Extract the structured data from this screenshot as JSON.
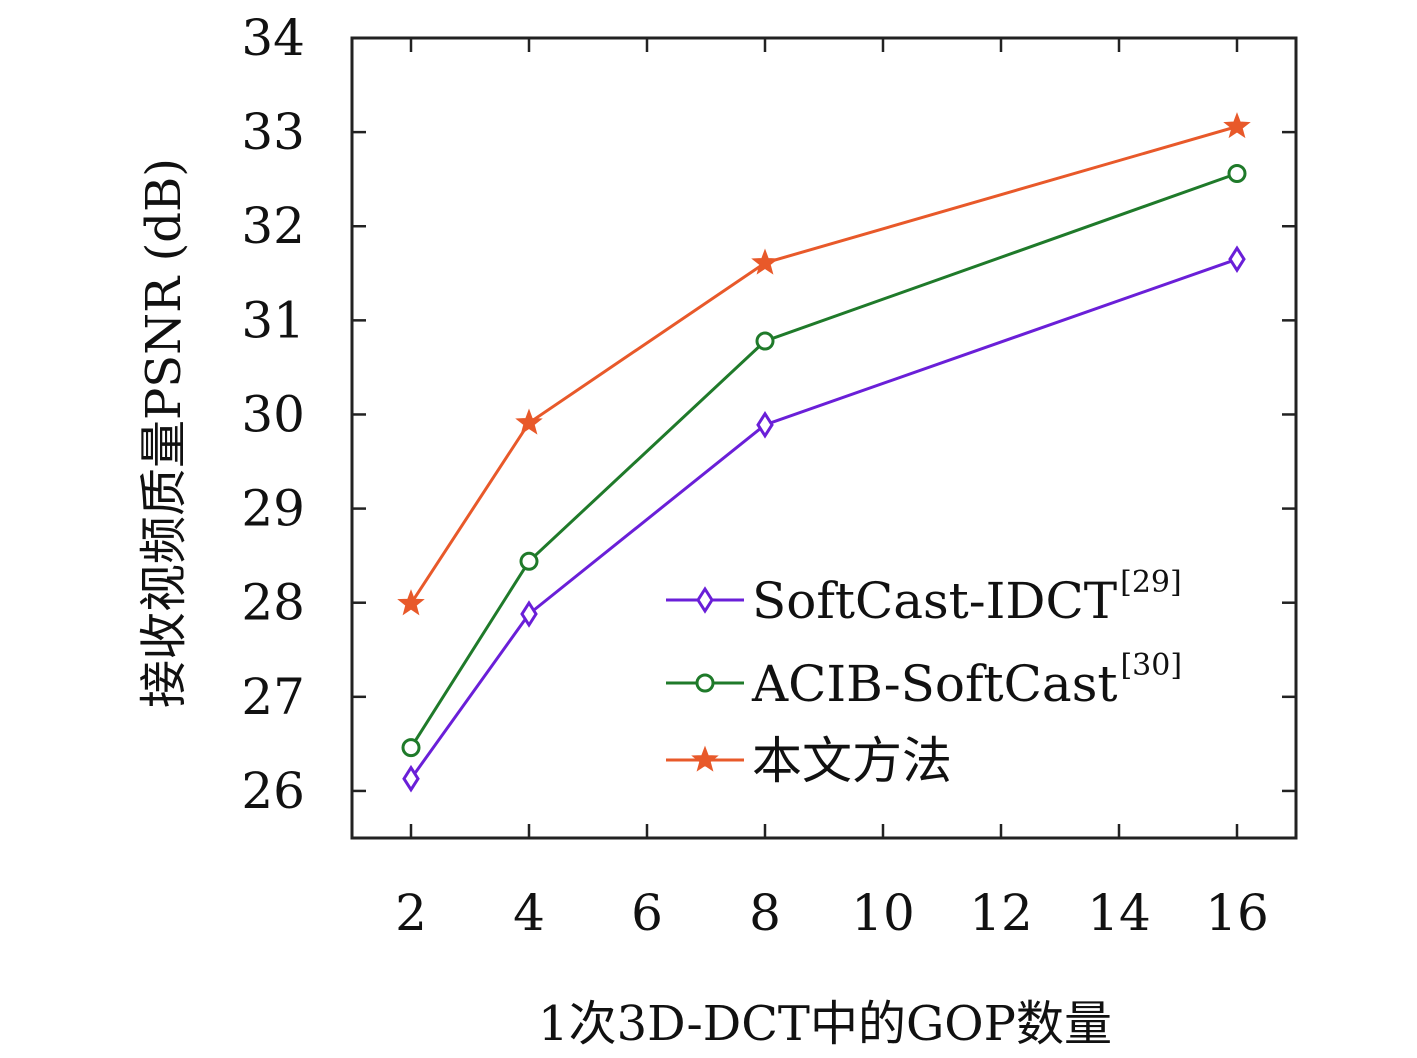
{
  "chart_data": {
    "type": "line",
    "title": "",
    "xlabel": "1次3D-DCT中的GOP数量",
    "ylabel": "接收视频质量PSNR (dB)",
    "xlim": [
      1,
      17
    ],
    "ylim": [
      25.5,
      34
    ],
    "x_ticks": [
      "2",
      "4",
      "6",
      "8",
      "10",
      "12",
      "14",
      "16"
    ],
    "y_ticks": [
      "26",
      "27",
      "28",
      "29",
      "30",
      "31",
      "32",
      "33",
      "34"
    ],
    "grid": false,
    "legend_position": "lower-right",
    "x": [
      2,
      4,
      8,
      16
    ],
    "series": [
      {
        "name": "SoftCast-IDCT",
        "ref": "[29]",
        "color": "#6a1fd8",
        "marker": "diamond",
        "values": [
          26.13,
          27.88,
          29.89,
          31.65
        ]
      },
      {
        "name": "ACIB-SoftCast",
        "ref": "[30]",
        "color": "#1f7a2a",
        "marker": "circle",
        "values": [
          26.46,
          28.44,
          30.78,
          32.56
        ]
      },
      {
        "name": "本文方法",
        "ref": "",
        "color": "#e8592a",
        "marker": "star",
        "values": [
          27.99,
          29.91,
          31.61,
          33.06
        ]
      }
    ]
  }
}
